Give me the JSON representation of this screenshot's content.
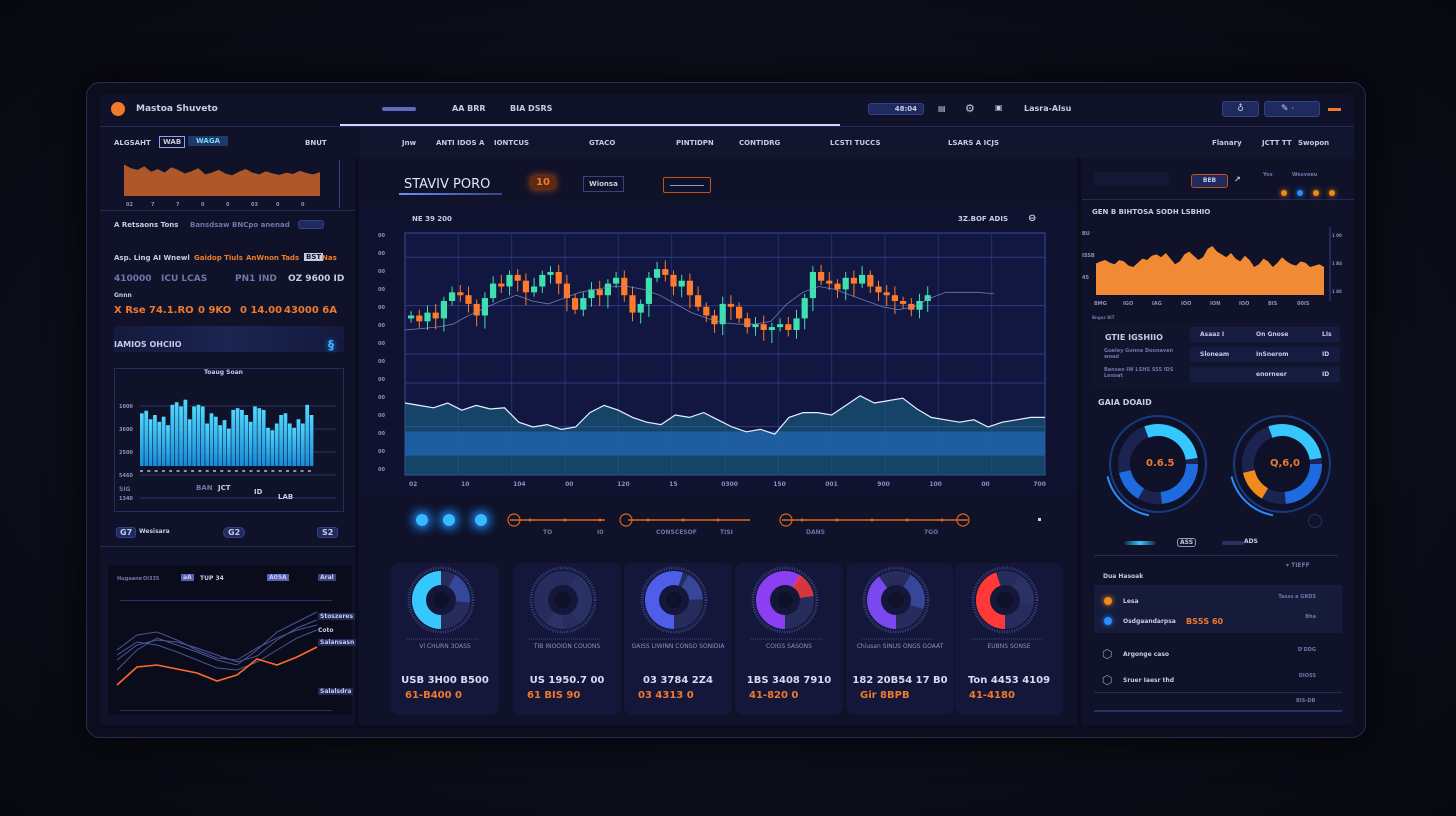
{
  "header": {
    "title": "Mastoa Shuveto",
    "tabs": [
      "AA BRR",
      "BIA DSRS"
    ],
    "time": "48:04",
    "user": "Lasra-Alsu",
    "accent": "#f07a2c"
  },
  "subnav": {
    "left_label": "ALGSAHT",
    "left_toggle": [
      "WAB",
      "WAGA"
    ],
    "left_right": "BNUT",
    "items": [
      "Jnw",
      "ANTI IDOS",
      "A",
      "IONTCUS",
      "GTACO",
      "PINTIDPN",
      "CONTIDRG",
      "LCSTI TUCCS",
      "LSARS A ICJS"
    ],
    "right_items": [
      "Flanary",
      "JCTT TT",
      "Swopon"
    ]
  },
  "left": {
    "mini_chart": {
      "x_ticks": [
        "02",
        "7",
        "7",
        "0",
        "0",
        "03",
        "0",
        "0"
      ],
      "values": [
        70,
        62,
        58,
        66,
        54,
        60,
        52,
        64,
        58,
        50,
        55,
        62,
        48,
        52,
        58,
        50,
        46,
        54,
        60,
        52,
        48,
        55,
        50,
        47,
        52,
        49,
        56,
        51,
        48,
        53
      ]
    },
    "stats": {
      "tabs": [
        "A Retsaons Tons",
        "Bansdsaw",
        "BNCpo anenad"
      ],
      "label": "Asp. Ling AI Wnewl",
      "orange_tags": [
        "Gaidop Tiuls",
        "AnWnon Tads"
      ],
      "tag_box": "BST",
      "tag_extra": "Nas",
      "values": [
        "410000",
        "ICU LCAS",
        "PN1 IND",
        "OZ 9600 ID"
      ],
      "sub_label": "Gnnn",
      "orange_values": [
        "X Rse",
        "74.1.RO",
        "0 9KO",
        "0 14.00",
        "43000 6A"
      ]
    },
    "section_title": "IAMIOS OHCIIO",
    "bar_chart": {
      "title": "Toaug Soan",
      "y_ticks": [
        "1000",
        "3600",
        "2500",
        "5460",
        "1340"
      ],
      "values": [
        62,
        65,
        55,
        60,
        52,
        58,
        48,
        72,
        75,
        70,
        78,
        55,
        70,
        72,
        70,
        50,
        62,
        58,
        48,
        54,
        44,
        66,
        68,
        66,
        60,
        52,
        70,
        68,
        66,
        45,
        42,
        50,
        60,
        62,
        50,
        45,
        55,
        50,
        72,
        60
      ],
      "bottom_labels": [
        "BAN",
        "JCT",
        "ID",
        "LAB"
      ],
      "bottom_y": "SIG"
    },
    "footer": [
      "G7",
      "Wesisara",
      "G2",
      "S2"
    ],
    "line_chart": {
      "toolbar": [
        "Hugaane",
        "Oi335",
        "aA",
        "TUP 34",
        "A05A",
        "Aral"
      ],
      "labels": [
        "Stoszeres",
        "Coto",
        "Salansasn",
        "Salalsdra"
      ],
      "series": [
        [
          40,
          55,
          60,
          58,
          52,
          45,
          38,
          44,
          60,
          72,
          80
        ],
        [
          30,
          50,
          62,
          55,
          48,
          40,
          35,
          50,
          68,
          78,
          88
        ],
        [
          50,
          65,
          68,
          60,
          50,
          42,
          40,
          52,
          62,
          70,
          75
        ],
        [
          45,
          58,
          55,
          48,
          40,
          32,
          30,
          38,
          50,
          62,
          70
        ]
      ],
      "highlight": [
        22,
        40,
        42,
        38,
        34,
        26,
        32,
        48,
        42,
        50,
        60
      ]
    }
  },
  "center": {
    "title": "STAVIV PORO",
    "badge": "10",
    "button1": "Wionsa",
    "button2": "",
    "chart": {
      "legend_left": "NE 39 200",
      "legend_right": "3Z.BOF  ADIS",
      "y_ticks": [
        "00",
        "00",
        "00",
        "00",
        "00",
        "00",
        "00",
        "00",
        "00",
        "00",
        "00",
        "00",
        "00",
        "00"
      ],
      "x_ticks": [
        "02",
        "10",
        "104",
        "00",
        "120",
        "15",
        "0300",
        "150",
        "001",
        "900",
        "100",
        "00",
        "700"
      ],
      "closes": [
        50,
        46,
        52,
        48,
        60,
        66,
        64,
        58,
        50,
        62,
        72,
        70,
        78,
        74,
        66,
        70,
        78,
        80,
        72,
        62,
        54,
        62,
        68,
        64,
        72,
        76,
        64,
        52,
        58,
        76,
        82,
        78,
        70,
        74,
        64,
        56,
        50,
        44,
        58,
        56,
        48,
        42,
        44,
        40,
        42,
        44,
        40,
        48,
        62,
        80,
        74,
        72,
        68,
        76,
        72,
        78,
        70,
        66,
        64,
        60,
        58,
        54,
        60,
        64
      ],
      "ma": [
        40,
        41,
        42,
        44,
        50,
        55,
        60,
        64,
        60,
        58,
        62,
        66,
        68,
        70,
        70,
        68,
        64,
        58,
        52,
        48,
        45,
        44,
        44,
        46,
        58,
        66,
        70,
        68,
        64,
        60,
        56,
        54,
        56,
        62,
        66,
        66,
        66,
        65
      ],
      "volume": [
        60,
        58,
        56,
        60,
        54,
        58,
        55,
        56,
        44,
        40,
        42,
        38,
        40,
        52,
        58,
        54,
        48,
        44,
        42,
        50,
        48,
        52,
        46,
        40,
        36,
        38,
        34,
        48,
        52,
        52,
        50,
        58,
        66,
        60,
        62,
        64,
        55,
        48,
        46,
        44,
        46,
        40,
        44,
        46,
        48,
        48
      ]
    },
    "timeline": {
      "labels": [
        "TO",
        "I0",
        "CONSCESOF",
        "TISI",
        "DANS",
        "7GO"
      ]
    },
    "gauges": [
      {
        "sub": "Vl CHURN 3OASS",
        "v1": "USB 3H00 B500",
        "v2": "61-B400 0",
        "colors": [
          "#37c7ff",
          "#3b4ea8"
        ],
        "fill": 0.5
      },
      {
        "sub": "TIB INOOIDN COUONS",
        "v1": "US 1950.7 00",
        "v2": "61 BIS 90",
        "colors": [
          "#2c3366",
          "#2c3366"
        ],
        "fill": 0.1
      },
      {
        "sub": "GAISS LIWINN CONSO SONIDIA",
        "v1": "03 3784 2Z4",
        "v2": "03 4313 0",
        "colors": [
          "#4f5ee8",
          "#3b4ea8"
        ],
        "fill": 0.55
      },
      {
        "sub": "COIGS SASONS",
        "v1": "1BS 3408 7910",
        "v2": "41-820 0",
        "colors": [
          "#8a3ff0",
          "#ff3a3a"
        ],
        "fill": 0.6
      },
      {
        "sub": "Chiusan SINUS ONGS GOAAT",
        "v1": "182 20B54 17 B0",
        "v2": "Gir 8BPB",
        "colors": [
          "#7b48f0",
          "#3b4ea8"
        ],
        "fill": 0.4
      },
      {
        "sub": "EUBNS SONSE",
        "v1": "Ton 4453 4109",
        "v2": "41-4180",
        "colors": [
          "#ff3838",
          "#2c3366"
        ],
        "fill": 0.45
      }
    ]
  },
  "right": {
    "top": {
      "badge": "BEB",
      "legend": [
        "Yos",
        "Wesvoeu"
      ],
      "dot_colors": [
        "#f08a1c",
        "#2a8cff",
        "#f08a1c",
        "#f08a1c"
      ]
    },
    "chart": {
      "title": "GEN B BIHTOSA SODH LSBHIO",
      "y_ticks": [
        "BU",
        "ISSB",
        "45"
      ],
      "x_ticks": [
        "BMG",
        "IGO",
        "IAG",
        "IOO",
        "ION",
        "IOO",
        "BIS",
        "00IS"
      ],
      "y_right": [
        "1 00",
        "1 BS",
        "1 88"
      ],
      "values": [
        45,
        48,
        50,
        46,
        44,
        50,
        48,
        42,
        40,
        46,
        52,
        50,
        56,
        58,
        54,
        60,
        52,
        44,
        48,
        58,
        62,
        56,
        50,
        54,
        66,
        70,
        62,
        58,
        54,
        60,
        52,
        48,
        56,
        50,
        40,
        44,
        52,
        48,
        40,
        46,
        54,
        48,
        44,
        42,
        48,
        46,
        40,
        42,
        44,
        40
      ],
      "foot": "Bngoz BIT"
    },
    "table": {
      "title": "GTIE IGSHIIO",
      "lines": [
        "Gueley Gonne Doonaven woad",
        "Banseo IW LSHS SSS IDS Lesoat"
      ],
      "rows": [
        [
          "Asaaz I",
          "On Gnose",
          "LIs"
        ],
        [
          "Sloneam",
          "InSnerom",
          "ID"
        ],
        [
          "",
          "enorneer",
          "ID"
        ]
      ]
    },
    "gauge_title": "GAIA DOAID",
    "gauges": [
      {
        "value": "0.6.5",
        "colors": [
          "#37c7ff",
          "#1e6be0"
        ]
      },
      {
        "value": "Q,6,0",
        "colors": [
          "#37c7ff",
          "#f08a1c"
        ]
      }
    ],
    "toggles": [
      "ASS",
      "ADS"
    ],
    "list": {
      "dropdown": "TIEFF",
      "title": "Dua Hasoak",
      "items": [
        {
          "label": "Lesa",
          "value": "Tasss a GRDS",
          "dot": "#f08a1c"
        },
        {
          "label": "Osdgaandarpsa",
          "tag": "BS5S 60",
          "value": "Bha",
          "dot": "#2a8cff"
        },
        {
          "label": "Argonge caso",
          "value": "D'DDG"
        },
        {
          "label": "Sruer Iaesr thd",
          "value": "DIOSS"
        }
      ],
      "footer": "BIS-DB"
    }
  }
}
